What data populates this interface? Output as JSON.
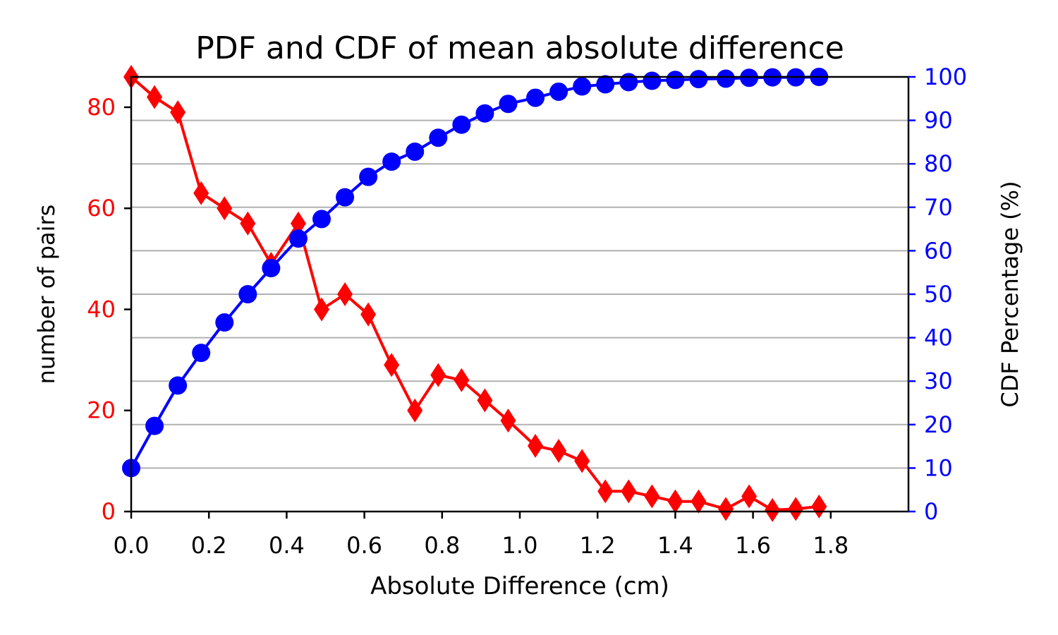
{
  "chart_data": {
    "type": "line",
    "title": "PDF and CDF of mean absolute difference",
    "xlabel": "Absolute Difference (cm)",
    "ylabel_left": "number of pairs",
    "ylabel_right": "CDF Percentage (%)",
    "xlim": [
      0,
      2.0
    ],
    "ylim_left": [
      0,
      86
    ],
    "ylim_right": [
      0,
      100
    ],
    "x_ticks": [
      0.0,
      0.2,
      0.4,
      0.6,
      0.8,
      1.0,
      1.2,
      1.4,
      1.6,
      1.8
    ],
    "x_tick_labels": [
      "0.0",
      "0.2",
      "0.4",
      "0.6",
      "0.8",
      "1.0",
      "1.2",
      "1.4",
      "1.6",
      "1.8"
    ],
    "y_left_ticks": [
      0,
      20,
      40,
      60,
      80
    ],
    "y_left_tick_labels": [
      "0",
      "20",
      "40",
      "60",
      "80"
    ],
    "y_right_ticks": [
      0,
      10,
      20,
      30,
      40,
      50,
      60,
      70,
      80,
      90,
      100
    ],
    "y_right_tick_labels": [
      "0",
      "10",
      "20",
      "30",
      "40",
      "50",
      "60",
      "70",
      "80",
      "90",
      "100"
    ],
    "grid": "horizontal, right axis",
    "colors": {
      "pdf": "#ff0000",
      "cdf": "#0000ff",
      "grid": "#b0b0b0",
      "axes": "#000000"
    },
    "x": [
      0.0,
      0.06,
      0.12,
      0.18,
      0.24,
      0.3,
      0.36,
      0.43,
      0.49,
      0.55,
      0.61,
      0.67,
      0.73,
      0.79,
      0.85,
      0.91,
      0.97,
      1.04,
      1.1,
      1.16,
      1.22,
      1.28,
      1.34,
      1.4,
      1.46,
      1.53,
      1.59,
      1.65,
      1.71,
      1.77
    ],
    "series": [
      {
        "axis": "left",
        "marker": "diamond",
        "values": [
          86,
          82,
          79,
          63,
          60,
          57,
          49,
          57,
          40,
          43,
          39,
          29,
          20,
          27,
          26,
          22,
          18,
          13,
          12,
          10,
          4,
          4,
          3,
          2,
          2,
          0.5,
          3,
          0.3,
          0.5,
          1
        ]
      },
      {
        "axis": "right",
        "marker": "circle",
        "values": [
          10.0,
          19.7,
          29.0,
          36.5,
          43.5,
          50.0,
          56.0,
          62.8,
          67.3,
          72.3,
          77.0,
          80.5,
          82.8,
          86.0,
          89.0,
          91.6,
          93.8,
          95.2,
          96.6,
          97.8,
          98.3,
          98.8,
          99.1,
          99.3,
          99.5,
          99.6,
          99.8,
          99.9,
          99.9,
          100.0
        ]
      }
    ]
  }
}
